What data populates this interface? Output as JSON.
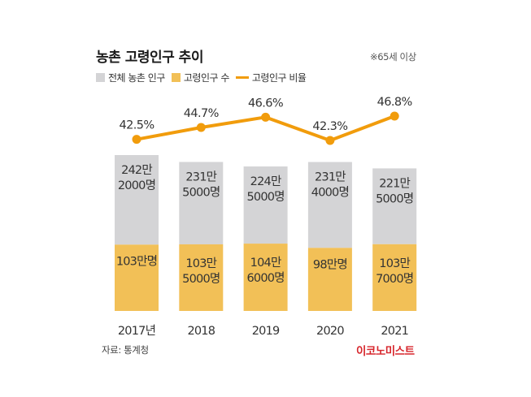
{
  "chart_data": {
    "type": "bar+line",
    "title": "농촌 고령인구 추이",
    "note": "※65세 이상",
    "categories": [
      "2017년",
      "2018",
      "2019",
      "2020",
      "2021"
    ],
    "legend": [
      {
        "label": "전체 농촌 인구",
        "kind": "bar",
        "color": "#d4d4d6"
      },
      {
        "label": "고령인구 수",
        "kind": "bar",
        "color": "#f2c057"
      },
      {
        "label": "고령인구 비율",
        "kind": "line",
        "color": "#f19c0c"
      }
    ],
    "series": [
      {
        "name": "전체 농촌 인구",
        "unit": "명",
        "values": [
          2422000,
          2315000,
          2245000,
          2314000,
          2215000
        ],
        "labels": [
          [
            "242만",
            "2000명"
          ],
          [
            "231만",
            "5000명"
          ],
          [
            "224만",
            "5000명"
          ],
          [
            "231만",
            "4000명"
          ],
          [
            "221만",
            "5000명"
          ]
        ]
      },
      {
        "name": "고령인구 수",
        "unit": "명",
        "values": [
          1030000,
          1035000,
          1046000,
          980000,
          1037000
        ],
        "labels": [
          [
            "103만명"
          ],
          [
            "103만",
            "5000명"
          ],
          [
            "104만",
            "6000명"
          ],
          [
            "98만명"
          ],
          [
            "103만",
            "7000명"
          ]
        ]
      },
      {
        "name": "고령인구 비율",
        "unit": "%",
        "values": [
          42.5,
          44.7,
          46.6,
          42.3,
          46.8
        ],
        "labels": [
          "42.5%",
          "44.7%",
          "46.6%",
          "42.3%",
          "46.8%"
        ]
      }
    ],
    "grid": false,
    "legend_position": "top-left"
  },
  "source": "자료: 통계청",
  "brand": "이코노미스트"
}
